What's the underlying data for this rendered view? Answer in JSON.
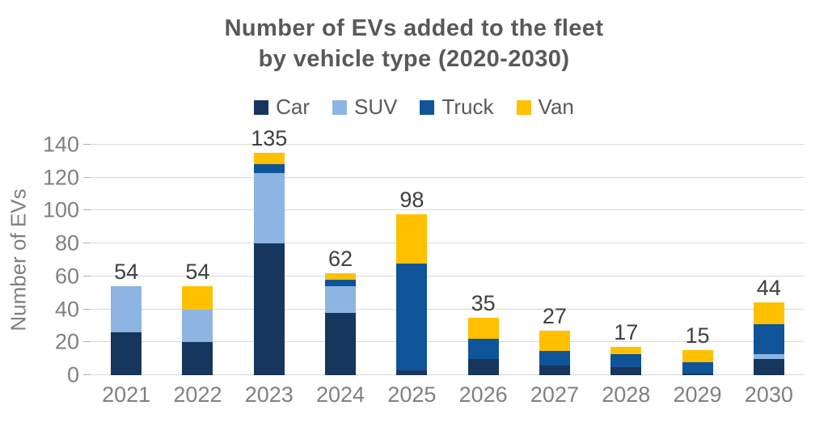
{
  "title": {
    "line1": "Number of EVs added to the fleet",
    "line2": "by vehicle type (2020-2030)"
  },
  "colors": {
    "car": "#17365D",
    "suv": "#8DB4E2",
    "truck": "#0F5499",
    "van": "#FFC000",
    "title_text": "#595959",
    "axis_text": "#808080",
    "value_label_text": "#404040",
    "gridline": "#D9D9D9"
  },
  "chart_data": {
    "type": "bar",
    "stacked": true,
    "title": "Number of EVs added to the fleet by vehicle type (2020-2030)",
    "categories": [
      "2021",
      "2022",
      "2023",
      "2024",
      "2025",
      "2026",
      "2027",
      "2028",
      "2029",
      "2030"
    ],
    "series": [
      {
        "name": "Car",
        "color": "#17365D",
        "values": [
          26,
          20,
          80,
          38,
          3,
          10,
          6,
          5,
          1,
          10
        ]
      },
      {
        "name": "SUV",
        "color": "#8DB4E2",
        "values": [
          28,
          20,
          43,
          16,
          0,
          0,
          0,
          0,
          0,
          3
        ]
      },
      {
        "name": "Truck",
        "color": "#0F5499",
        "values": [
          0,
          0,
          5,
          4,
          65,
          12,
          9,
          8,
          7,
          18
        ]
      },
      {
        "name": "Van",
        "color": "#FFC000",
        "values": [
          0,
          14,
          7,
          4,
          30,
          13,
          12,
          4,
          7,
          13
        ]
      }
    ],
    "totals": [
      54,
      54,
      135,
      62,
      98,
      35,
      27,
      17,
      15,
      44
    ],
    "xlabel": "",
    "ylabel": "Number of EVs",
    "yticks": [
      0,
      20,
      40,
      60,
      80,
      100,
      120,
      140
    ],
    "ylim": [
      0,
      140
    ],
    "grid": true,
    "legend_position": "top",
    "legend_labels": [
      "Car",
      "SUV",
      "Truck",
      "Van"
    ]
  }
}
